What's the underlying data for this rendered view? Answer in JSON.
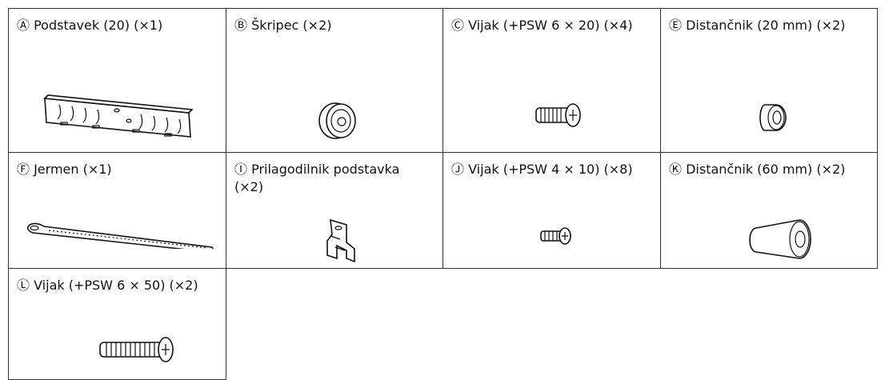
{
  "parts": [
    {
      "label": "Ⓐ Podstavek (20) (×1)"
    },
    {
      "label": "Ⓑ Škripec (×2)"
    },
    {
      "label": "Ⓒ Vijak (+PSW 6 × 20) (×4)"
    },
    {
      "label": "Ⓔ Distančnik (20 mm) (×2)"
    },
    {
      "label": "Ⓕ Jermen (×1)"
    },
    {
      "label": "Ⓘ Prilagodilnik podstavka (×2)"
    },
    {
      "label": "Ⓙ Vijak (+PSW 4 × 10) (×8)"
    },
    {
      "label": "Ⓚ Distančnik (60 mm) (×2)"
    },
    {
      "label": "Ⓛ Vijak (+PSW 6 × 50) (×2)"
    }
  ]
}
